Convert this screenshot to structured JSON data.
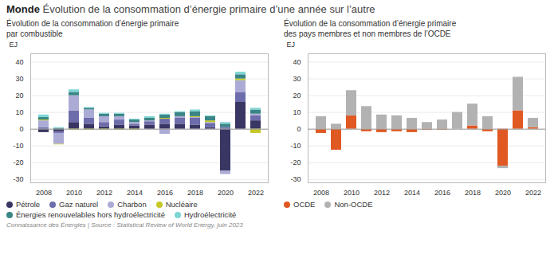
{
  "chart_data": [
    {
      "type": "bar",
      "stacked": true,
      "grid": true,
      "legend": "bottom",
      "title": "Monde Évolution de la consommation d’énergie primaire d’une année sur l’autre",
      "subtitle": "Évolution de la consommation d’énergie primaire\npar combustible",
      "annotations": [
        "Connaissance des Énergies | Source : Statistical Review of World Energy, juin 2023"
      ],
      "ylabel": "EJ",
      "categories": [
        "2008",
        null,
        "2010",
        null,
        "2012",
        null,
        "2014",
        null,
        "2016",
        null,
        "2018",
        null,
        "2020",
        null,
        "2022"
      ],
      "series": [
        {
          "name": "Pétrole",
          "color": "#393663",
          "values": [
            -2.0,
            -1.5,
            4.0,
            3.0,
            1.5,
            2.5,
            2.0,
            2.5,
            3.0,
            3.0,
            2.5,
            1.0,
            -25.0,
            16.0,
            5.0
          ]
        },
        {
          "name": "Gaz naturel",
          "color": "#6e6dab",
          "values": [
            1.0,
            -1.0,
            7.0,
            3.5,
            2.5,
            3.0,
            1.0,
            2.0,
            3.0,
            3.5,
            4.0,
            2.5,
            1.0,
            6.0,
            3.0
          ]
        },
        {
          "name": "Charbon",
          "color": "#acabd6",
          "values": [
            4.0,
            -6.5,
            9.0,
            5.0,
            3.5,
            2.0,
            1.0,
            0.5,
            -3.0,
            1.0,
            0.5,
            0.5,
            -2.0,
            7.0,
            1.0
          ]
        },
        {
          "name": "Nucléaire",
          "color": "#c5c827",
          "values": [
            0.5,
            -0.3,
            -0.5,
            -0.5,
            -0.5,
            -0.5,
            -0.5,
            0.0,
            0.5,
            0.0,
            0.5,
            1.0,
            0.0,
            1.0,
            -2.5
          ]
        },
        {
          "name": "Énergies renouvelables hors hydroélectricité",
          "color": "#3a8585",
          "values": [
            1.5,
            0.5,
            2.0,
            1.0,
            1.5,
            1.5,
            1.5,
            1.5,
            2.0,
            2.5,
            3.0,
            2.5,
            2.0,
            2.5,
            2.5
          ]
        },
        {
          "name": "Hydroélectricité",
          "color": "#7ed5d5",
          "values": [
            1.5,
            0.5,
            1.5,
            0.5,
            0.5,
            0.5,
            0.5,
            1.0,
            0.5,
            0.5,
            1.0,
            0.5,
            1.0,
            1.5,
            1.0
          ]
        }
      ],
      "ylim": [
        -32,
        45
      ],
      "yticks": [
        -30,
        -20,
        -10,
        0,
        10,
        20,
        30,
        40
      ]
    },
    {
      "type": "bar",
      "stacked": true,
      "grid": true,
      "legend": "bottom",
      "subtitle": "Évolution de la consommation d’énergie primaire\ndes pays membres et non membres de l’OCDE",
      "ylabel": "EJ",
      "categories": [
        "2008",
        null,
        "2010",
        null,
        "2012",
        null,
        "2014",
        null,
        "2016",
        null,
        "2018",
        null,
        "2020",
        null,
        "2022"
      ],
      "series": [
        {
          "name": "OCDE",
          "color": "#e05922",
          "values": [
            -2.5,
            -12.5,
            8.0,
            -1.5,
            -2.0,
            -1.5,
            -2.0,
            -0.5,
            -0.5,
            0.0,
            2.0,
            -1.5,
            -22.0,
            11.0,
            1.0
          ]
        },
        {
          "name": "Non-OCDE",
          "color": "#b2b2b2",
          "values": [
            7.5,
            3.0,
            15.0,
            13.5,
            8.5,
            8.0,
            6.5,
            4.0,
            5.5,
            10.0,
            13.0,
            7.5,
            -1.5,
            20.0,
            5.5
          ]
        }
      ],
      "ylim": [
        -32,
        45
      ],
      "yticks": [
        -30,
        -20,
        -10,
        0,
        10,
        20,
        30,
        40
      ]
    }
  ]
}
